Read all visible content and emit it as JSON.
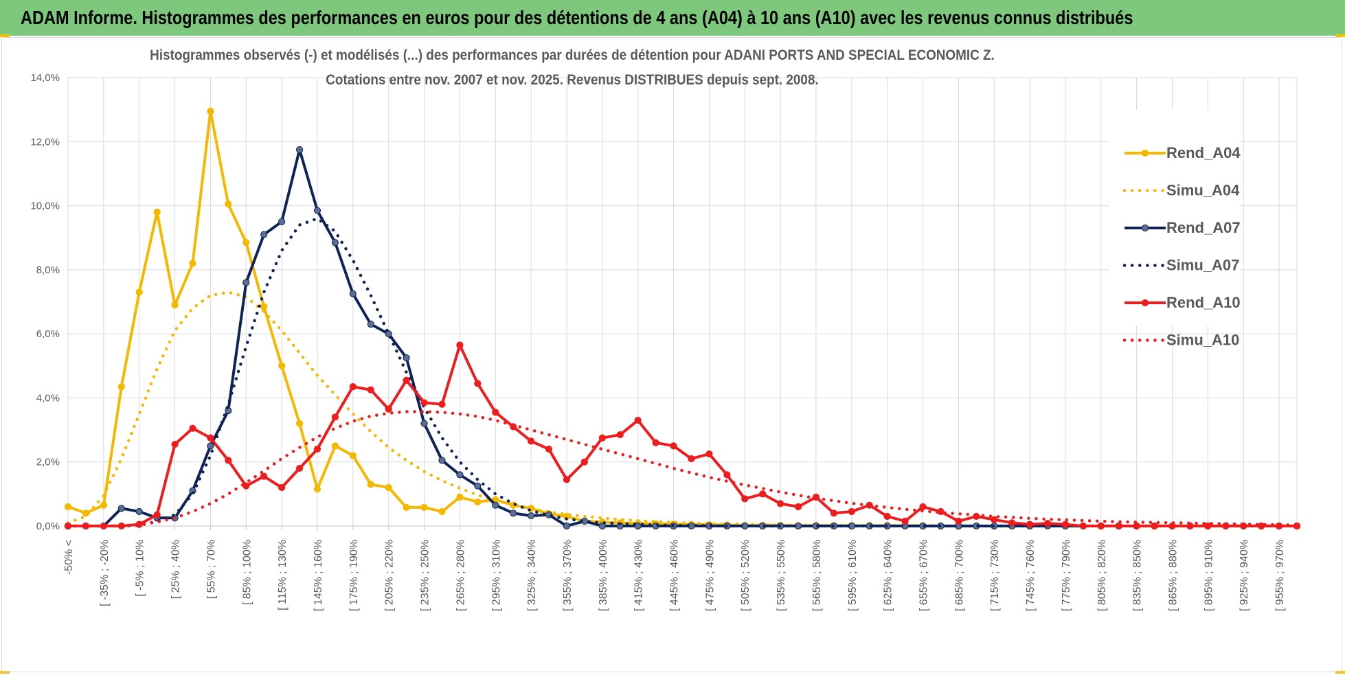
{
  "banner": {
    "title": "ADAM Informe. Histogrammes des performances en euros pour des détentions de 4 ans (A04) à 10 ans (A10) avec les revenus connus distribués",
    "color": "#7ec87e"
  },
  "chart_data": {
    "type": "line",
    "title": "Histogrammes observés (-) et modélisés (...) des performances par durées de détention pour ADANI PORTS AND SPECIAL ECONOMIC Z.",
    "subtitle": "Cotations entre nov. 2007 et nov. 2025. Revenus DISTRIBUES depuis sept. 2008.",
    "xlabel": "",
    "ylabel": "",
    "ylim": [
      0,
      14
    ],
    "yticks": [
      "0,0%",
      "2,0%",
      "4,0%",
      "6,0%",
      "8,0%",
      "10,0%",
      "12,0%",
      "14,0%"
    ],
    "grid": true,
    "legend_position": "right",
    "x_tick_labels": [
      "-50% <",
      "[ -35% ; -20%",
      "[ -5% ; 10%",
      "[ 25% ; 40%",
      "[ 55% ; 70%",
      "[ 85% ; 100%",
      "[ 115% ; 130%",
      "[ 145% ; 160%",
      "[ 175% ; 190%",
      "[ 205% ; 220%",
      "[ 235% ; 250%",
      "[ 265% ; 280%",
      "[ 295% ; 310%",
      "[ 325% ; 340%",
      "[ 355% ; 370%",
      "[ 385% ; 400%",
      "[ 415% ; 430%",
      "[ 445% ; 460%",
      "[ 475% ; 490%",
      "[ 505% ; 520%",
      "[ 535% ; 550%",
      "[ 565% ; 580%",
      "[ 595% ; 610%",
      "[ 625% ; 640%",
      "[ 655% ; 670%",
      "[ 685% ; 700%",
      "[ 715% ; 730%",
      "[ 745% ; 760%",
      "[ 775% ; 790%",
      "[ 805% ; 820%",
      "[ 835% ; 850%",
      "[ 865% ; 880%",
      "[ 895% ; 910%",
      "[ 925% ; 940%",
      "[ 955% ; 970%"
    ],
    "n_points": 70,
    "series": [
      {
        "name": "Rend_A04",
        "style": "solid",
        "color": "#f5b800",
        "values": [
          0.6,
          0.4,
          0.65,
          4.35,
          7.3,
          9.8,
          6.9,
          8.2,
          12.95,
          10.05,
          8.85,
          6.85,
          5.0,
          3.2,
          1.15,
          2.5,
          2.2,
          1.3,
          1.2,
          0.58,
          0.58,
          0.45,
          0.9,
          0.75,
          0.82,
          0.65,
          0.55,
          0.38,
          0.3,
          0.15,
          0.12,
          0.1,
          0.08,
          0.07,
          0.06,
          0.05,
          0.04,
          0.03,
          0.02,
          0.02,
          0.02,
          0.01,
          0.01,
          0.01,
          0.01,
          0.01,
          0.01,
          0.01,
          0.01,
          0.0,
          0.0,
          0.0,
          0.0,
          0.0,
          0.0,
          0.0,
          0.0,
          0.0,
          0.0,
          0.0,
          0.0,
          0.0,
          0.0,
          0.0,
          0.0,
          0.0,
          0.0,
          0.0,
          0.0,
          0.0
        ]
      },
      {
        "name": "Simu_A04",
        "style": "dotted",
        "color": "#f5b800",
        "values": [
          0.1,
          0.3,
          0.95,
          2.1,
          3.5,
          4.9,
          6.1,
          6.8,
          7.2,
          7.3,
          7.15,
          6.7,
          6.1,
          5.4,
          4.7,
          4.1,
          3.5,
          2.95,
          2.45,
          2.05,
          1.7,
          1.42,
          1.18,
          0.97,
          0.8,
          0.66,
          0.54,
          0.44,
          0.36,
          0.3,
          0.25,
          0.2,
          0.17,
          0.14,
          0.11,
          0.09,
          0.075,
          0.06,
          0.05,
          0.04,
          0.03,
          0.025,
          0.02,
          0.015,
          0.01,
          0.01,
          0.01,
          0.0,
          0.0,
          0.0,
          0.0,
          0.0,
          0.0,
          0.0,
          0.0,
          0.0,
          0.0,
          0.0,
          0.0,
          0.0,
          0.0,
          0.0,
          0.0,
          0.0,
          0.0,
          0.0,
          0.0,
          0.0,
          0.0,
          0.0
        ]
      },
      {
        "name": "Rend_A07",
        "style": "solid",
        "color": "#0f2357",
        "values": [
          0.0,
          0.0,
          0.0,
          0.55,
          0.45,
          0.25,
          0.25,
          1.1,
          2.5,
          3.6,
          7.6,
          9.1,
          9.5,
          11.75,
          9.85,
          8.85,
          7.25,
          6.3,
          6.0,
          5.25,
          3.2,
          2.05,
          1.6,
          1.25,
          0.65,
          0.4,
          0.32,
          0.35,
          0.0,
          0.15,
          0.0,
          0.0,
          0.0,
          0.0,
          0.0,
          0.0,
          0.0,
          0.0,
          0.0,
          0.0,
          0.0,
          0.0,
          0.0,
          0.0,
          0.0,
          0.0,
          0.0,
          0.0,
          0.0,
          0.0,
          0.0,
          0.0,
          0.0,
          0.0,
          0.0,
          0.0,
          0.0,
          0.0,
          0.0,
          0.0,
          0.0,
          0.0,
          0.0,
          0.0,
          0.0,
          0.0,
          0.0,
          0.0,
          0.0,
          0.0
        ]
      },
      {
        "name": "Simu_A07",
        "style": "dotted",
        "color": "#0f2357",
        "values": [
          0.0,
          0.0,
          0.0,
          0.0,
          0.02,
          0.15,
          0.35,
          1.0,
          2.2,
          3.8,
          5.6,
          7.3,
          8.6,
          9.4,
          9.6,
          9.2,
          8.3,
          7.2,
          6.0,
          4.8,
          3.7,
          2.75,
          2.0,
          1.45,
          1.0,
          0.7,
          0.48,
          0.33,
          0.22,
          0.15,
          0.1,
          0.07,
          0.05,
          0.03,
          0.02,
          0.015,
          0.01,
          0.0,
          0.0,
          0.0,
          0.0,
          0.0,
          0.0,
          0.0,
          0.0,
          0.0,
          0.0,
          0.0,
          0.0,
          0.0,
          0.0,
          0.0,
          0.0,
          0.0,
          0.0,
          0.0,
          0.0,
          0.0,
          0.0,
          0.0,
          0.0,
          0.0,
          0.0,
          0.0,
          0.0,
          0.0,
          0.0,
          0.0,
          0.0,
          0.0
        ]
      },
      {
        "name": "Rend_A10",
        "style": "solid",
        "color": "#ee1c1c",
        "values": [
          0.0,
          0.0,
          0.0,
          0.0,
          0.05,
          0.35,
          2.55,
          3.05,
          2.75,
          2.05,
          1.25,
          1.55,
          1.2,
          1.8,
          2.4,
          3.4,
          4.35,
          4.25,
          3.65,
          4.55,
          3.85,
          3.8,
          5.65,
          4.45,
          3.55,
          3.1,
          2.65,
          2.4,
          1.45,
          2.0,
          2.75,
          2.85,
          3.3,
          2.6,
          2.5,
          2.1,
          2.25,
          1.6,
          0.85,
          1.0,
          0.7,
          0.6,
          0.9,
          0.4,
          0.45,
          0.65,
          0.3,
          0.15,
          0.6,
          0.45,
          0.15,
          0.3,
          0.2,
          0.1,
          0.05,
          0.08,
          0.05,
          0.0,
          0.0,
          0.0,
          0.0,
          0.0,
          0.0,
          0.0,
          0.0,
          0.0,
          0.0,
          0.0,
          0.0,
          0.0
        ]
      },
      {
        "name": "Simu_A10",
        "style": "dotted",
        "color": "#ee1c1c",
        "values": [
          0.0,
          0.0,
          0.0,
          0.0,
          0.05,
          0.12,
          0.25,
          0.45,
          0.7,
          1.0,
          1.35,
          1.72,
          2.1,
          2.45,
          2.78,
          3.05,
          3.27,
          3.43,
          3.52,
          3.57,
          3.57,
          3.55,
          3.5,
          3.42,
          3.3,
          3.15,
          3.0,
          2.85,
          2.7,
          2.55,
          2.4,
          2.25,
          2.1,
          1.95,
          1.8,
          1.66,
          1.52,
          1.4,
          1.28,
          1.17,
          1.06,
          0.96,
          0.87,
          0.79,
          0.71,
          0.64,
          0.58,
          0.52,
          0.47,
          0.42,
          0.38,
          0.34,
          0.3,
          0.27,
          0.24,
          0.21,
          0.19,
          0.17,
          0.15,
          0.13,
          0.12,
          0.11,
          0.1,
          0.09,
          0.08,
          0.07,
          0.06,
          0.05,
          0.04,
          0.03
        ]
      }
    ]
  }
}
